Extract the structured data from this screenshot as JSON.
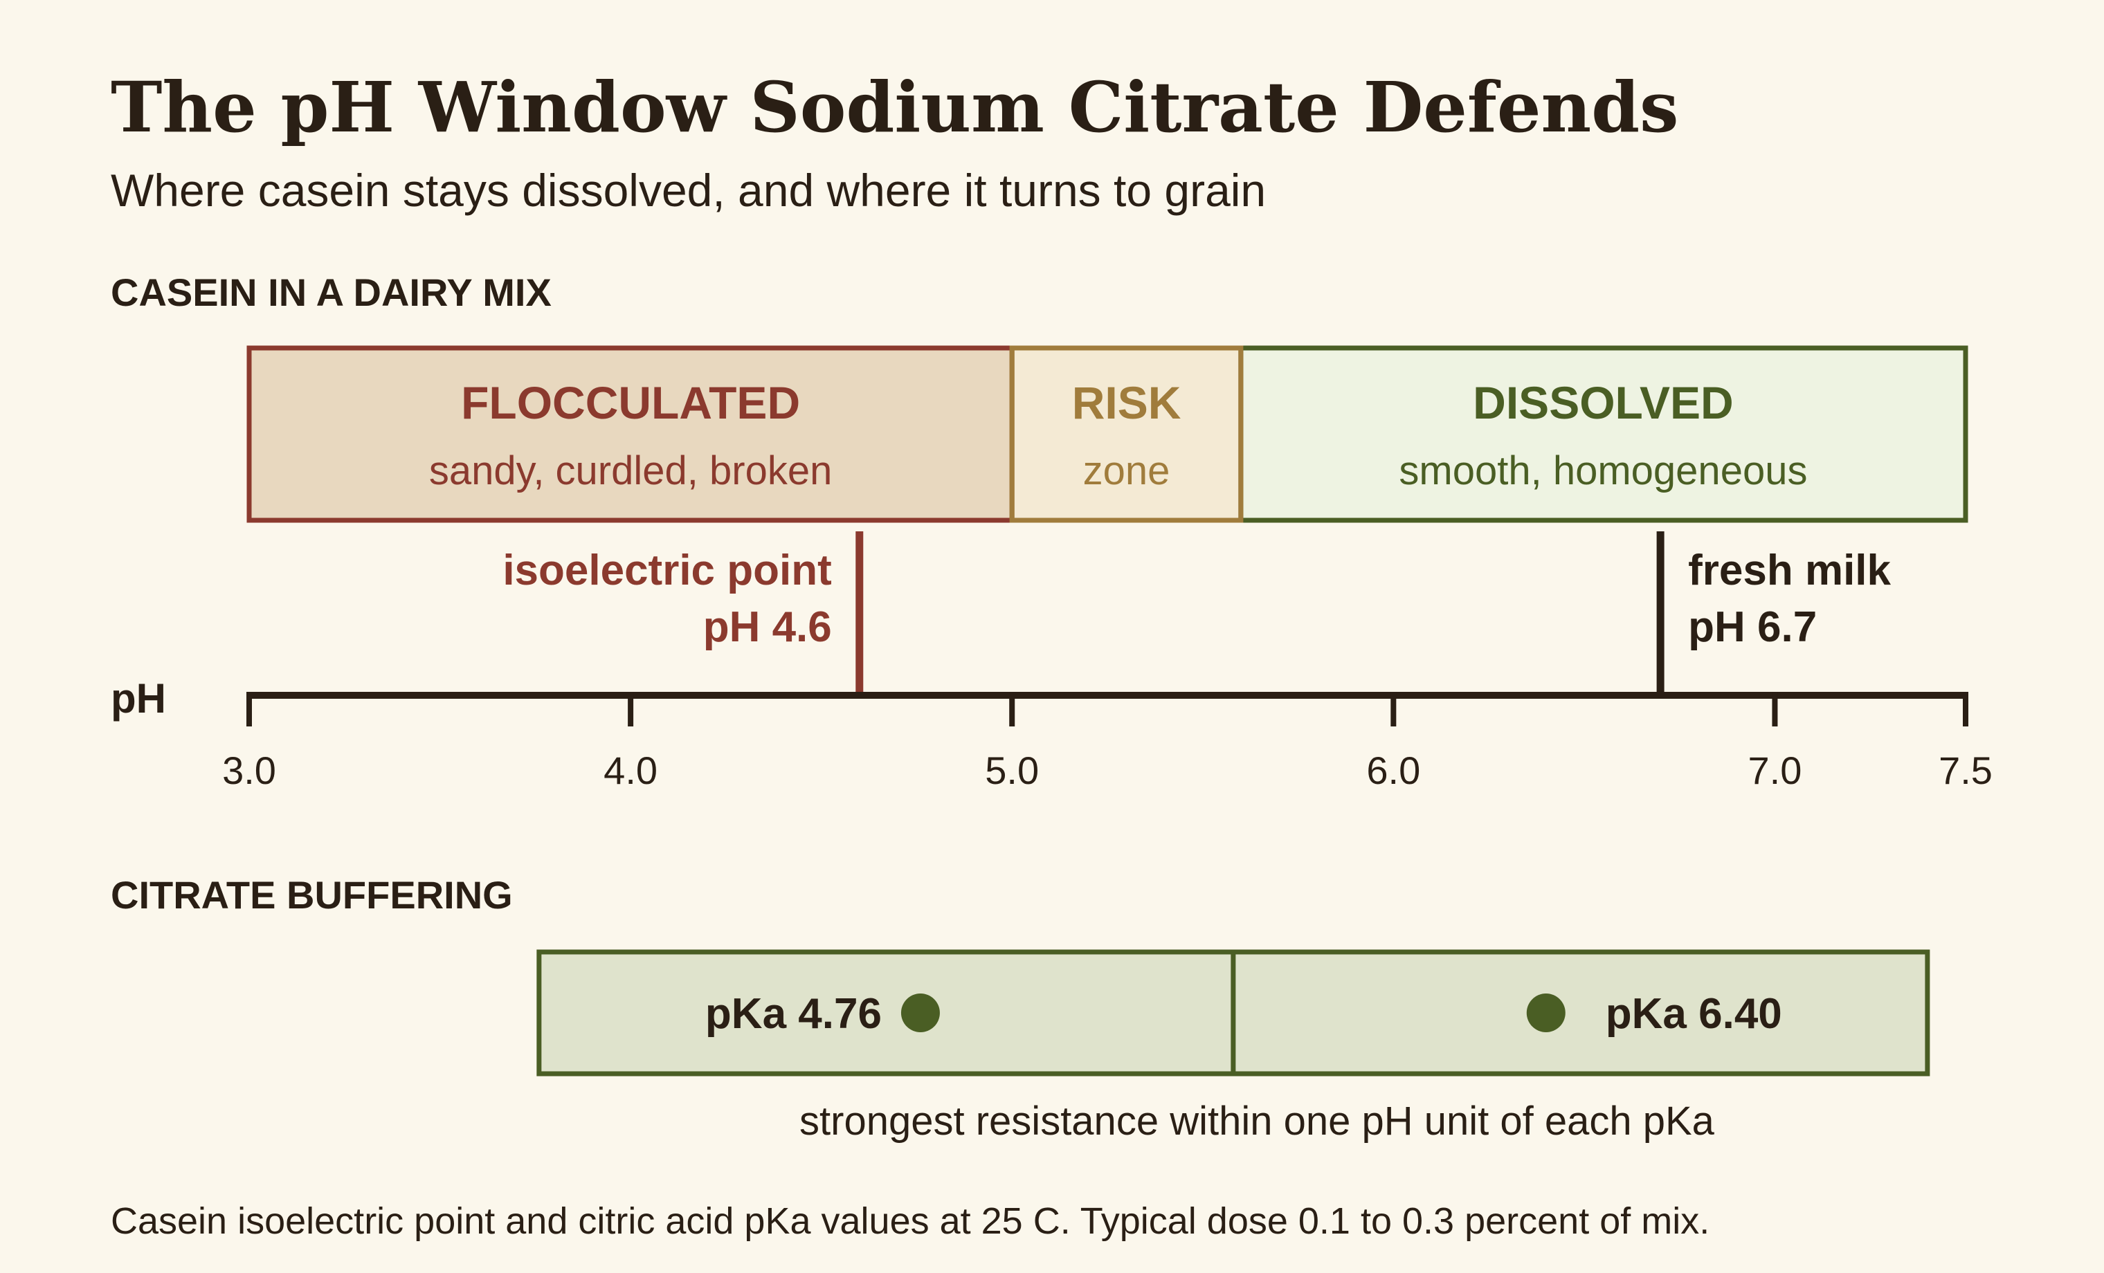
{
  "title": "The pH Window Sodium Citrate Defends",
  "subtitle": "Where casein stays dissolved, and where it turns to grain",
  "casein_section": {
    "heading": "CASEIN IN A DAIRY MIX",
    "zones": [
      {
        "label": "FLOCCULATED",
        "sublabel": "sandy, curdled, broken",
        "from": 3.0,
        "to": 5.0,
        "color": "#8b3a2e",
        "fill": "#e8d8bf"
      },
      {
        "label": "RISK",
        "sublabel": "zone",
        "from": 5.0,
        "to": 5.6,
        "color": "#a07c3c",
        "fill": "#f4ead4"
      },
      {
        "label": "DISSOLVED",
        "sublabel": "smooth, homogeneous",
        "from": 5.6,
        "to": 7.5,
        "color": "#4a5e24",
        "fill": "#eef3e2"
      }
    ],
    "markers": [
      {
        "line1": "isoelectric point",
        "line2": "pH 4.6",
        "value": 4.6,
        "color": "#8b3a2e",
        "side": "left"
      },
      {
        "line1": "fresh milk",
        "line2": "pH 6.7",
        "value": 6.7,
        "color": "#2a1f15",
        "side": "right"
      }
    ],
    "axis": {
      "label": "pH",
      "min": 3.0,
      "max": 7.5,
      "ticks": [
        {
          "value": 3.0,
          "label": "3.0"
        },
        {
          "value": 4.0,
          "label": "4.0"
        },
        {
          "value": 5.0,
          "label": "5.0"
        },
        {
          "value": 6.0,
          "label": "6.0"
        },
        {
          "value": 7.0,
          "label": "7.0"
        },
        {
          "value": 7.5,
          "label": "7.5"
        }
      ]
    }
  },
  "citrate_section": {
    "heading": "CITRATE BUFFERING",
    "pkas": [
      {
        "label": "pKa 4.76",
        "value": 4.76
      },
      {
        "label": "pKa 6.40",
        "value": 6.4
      }
    ],
    "band_from": 3.76,
    "band_to": 7.4,
    "note": "strongest resistance within one pH unit of each pKa",
    "color": "#4a5e24",
    "fill": "#dfe3cc"
  },
  "footnote": "Casein isoelectric point and citric acid pKa values at 25 C. Typical dose 0.1 to 0.3 percent of mix.",
  "colors": {
    "text": "#2a1f15",
    "background": "#fbf7ec"
  }
}
